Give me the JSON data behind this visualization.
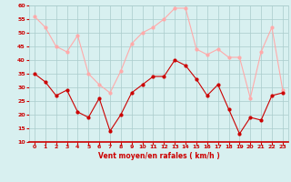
{
  "x": [
    0,
    1,
    2,
    3,
    4,
    5,
    6,
    7,
    8,
    9,
    10,
    11,
    12,
    13,
    14,
    15,
    16,
    17,
    18,
    19,
    20,
    21,
    22,
    23
  ],
  "wind_avg": [
    35,
    32,
    27,
    29,
    21,
    19,
    26,
    14,
    20,
    28,
    31,
    34,
    34,
    40,
    38,
    33,
    27,
    31,
    22,
    13,
    19,
    18,
    27,
    28
  ],
  "wind_gust": [
    56,
    52,
    45,
    43,
    49,
    35,
    31,
    28,
    36,
    46,
    50,
    52,
    55,
    59,
    59,
    44,
    42,
    44,
    41,
    41,
    26,
    43,
    52,
    29
  ],
  "color_avg": "#cc0000",
  "color_gust": "#ffaaaa",
  "bg_color": "#d8f0f0",
  "grid_color": "#aacccc",
  "xlabel": "Vent moyen/en rafales ( km/h )",
  "xlabel_color": "#cc0000",
  "tick_color": "#cc0000",
  "ylim": [
    10,
    60
  ],
  "yticks": [
    10,
    15,
    20,
    25,
    30,
    35,
    40,
    45,
    50,
    55,
    60
  ],
  "xlim": [
    -0.5,
    23.5
  ],
  "xticks": [
    0,
    1,
    2,
    3,
    4,
    5,
    6,
    7,
    8,
    9,
    10,
    11,
    12,
    13,
    14,
    15,
    16,
    17,
    18,
    19,
    20,
    21,
    22,
    23
  ]
}
